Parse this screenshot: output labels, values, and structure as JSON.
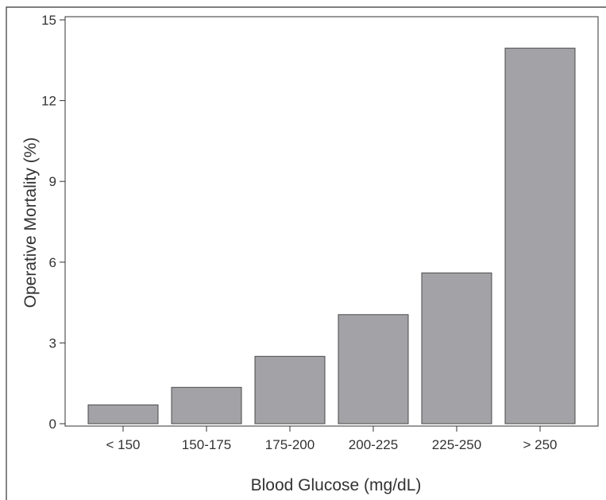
{
  "chart_data": {
    "type": "bar",
    "categories": [
      "< 150",
      "150-175",
      "175-200",
      "200-225",
      "225-250",
      "> 250"
    ],
    "values": [
      0.7,
      1.35,
      2.5,
      4.05,
      5.6,
      13.95
    ],
    "title": "",
    "xlabel": "Blood Glucose (mg/dL)",
    "ylabel": "Operative Mortality (%)",
    "ylim": [
      0,
      15
    ],
    "yticks": [
      "0",
      "3",
      "6",
      "9",
      "12",
      "15"
    ],
    "grid": false,
    "legend": "none",
    "colors": {
      "bar_fill": "#a3a3a7",
      "bar_stroke": "#4a4a4a",
      "axis": "#333333",
      "frame": "#333333"
    }
  }
}
